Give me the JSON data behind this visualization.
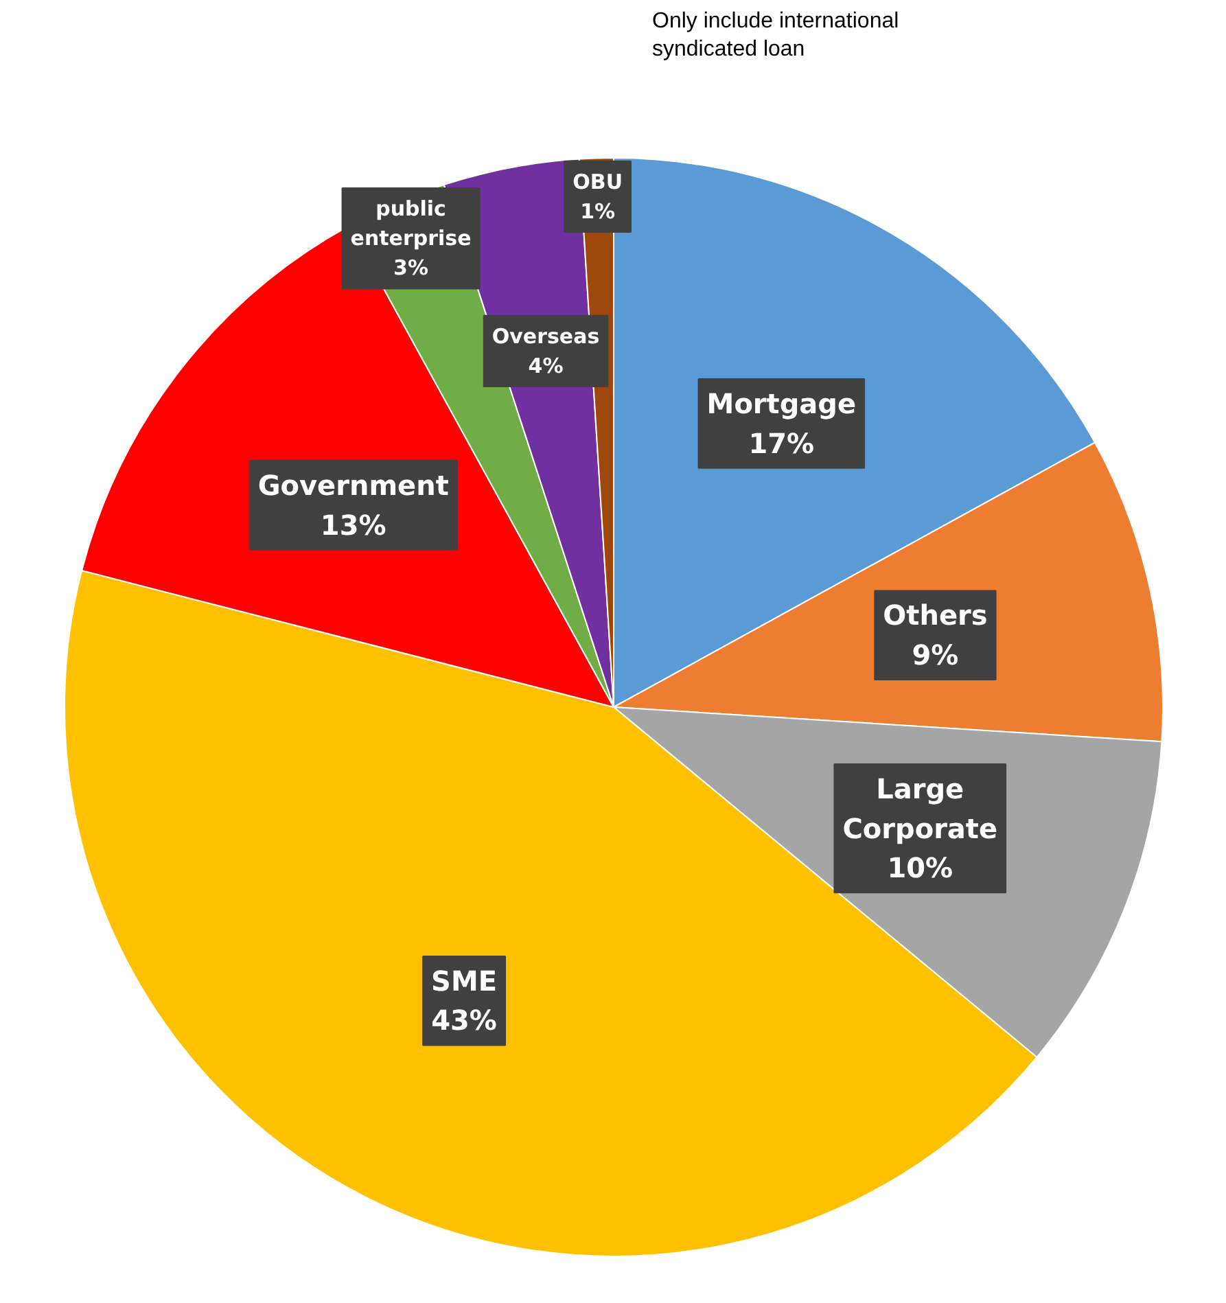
{
  "chart_data": {
    "type": "pie",
    "categories": [
      "Mortgage",
      "Others",
      "Large Corporate",
      "SME",
      "Government",
      "public enterprise",
      "Overseas",
      "OBU"
    ],
    "values": [
      17,
      9,
      10,
      43,
      13,
      3,
      4,
      1
    ],
    "colors": [
      "#5b9bd5",
      "#ed7d31",
      "#a5a5a5",
      "#ffc000",
      "#ff0000",
      "#70ad47",
      "#7030a0",
      "#9e480e"
    ],
    "value_labels": [
      "17%",
      "9%",
      "10%",
      "43%",
      "13%",
      "3%",
      "4%",
      "1%"
    ],
    "annotations": [
      "Only include international syndicated loan"
    ]
  }
}
